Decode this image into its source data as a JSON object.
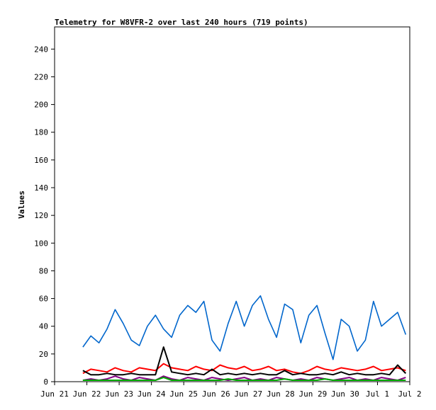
{
  "chart_data": {
    "type": "line",
    "title": "Telemetry for W8VFR-2 over last 240 hours (719 points)",
    "xlabel": "",
    "ylabel": "Values",
    "ylim": [
      0,
      256
    ],
    "yticks": [
      0,
      20,
      40,
      60,
      80,
      100,
      120,
      140,
      160,
      180,
      200,
      220,
      240
    ],
    "xlim": [
      "2025-06-21",
      "2025-07-02"
    ],
    "xticks": [
      "2025-06-21",
      "2025-06-22",
      "2025-06-23",
      "2025-06-24",
      "2025-06-25",
      "2025-06-26",
      "2025-06-27",
      "2025-06-28",
      "2025-06-29",
      "2025-06-30",
      "2025-07-01",
      "2025-07-02"
    ],
    "xtick_labels": [
      "Jun 21",
      "Jun 22",
      "Jun 23",
      "Jun 24",
      "Jun 25",
      "Jun 26",
      "Jun 27",
      "Jun 28",
      "Jun 29",
      "Jun 30",
      "Jul 1",
      "Jul 2"
    ],
    "x": [
      "06-21 21:00",
      "06-22 03:00",
      "06-22 09:00",
      "06-22 15:00",
      "06-22 21:00",
      "06-23 03:00",
      "06-23 09:00",
      "06-23 15:00",
      "06-23 21:00",
      "06-24 03:00",
      "06-24 09:00",
      "06-24 15:00",
      "06-24 21:00",
      "06-25 03:00",
      "06-25 09:00",
      "06-25 15:00",
      "06-25 21:00",
      "06-26 03:00",
      "06-26 09:00",
      "06-26 15:00",
      "06-26 21:00",
      "06-27 03:00",
      "06-27 09:00",
      "06-27 15:00",
      "06-27 21:00",
      "06-28 03:00",
      "06-28 09:00",
      "06-28 15:00",
      "06-28 21:00",
      "06-29 03:00",
      "06-29 09:00",
      "06-29 15:00",
      "06-29 21:00",
      "06-30 03:00",
      "06-30 09:00",
      "06-30 15:00",
      "06-30 21:00",
      "07-01 03:00",
      "07-01 09:00",
      "07-01 15:00",
      "07-01 21:00"
    ],
    "grid": false,
    "legend": "none",
    "series": [
      {
        "color": "#0066cc",
        "values": [
          25,
          33,
          28,
          38,
          52,
          42,
          30,
          26,
          40,
          48,
          38,
          32,
          48,
          55,
          50,
          58,
          30,
          22,
          42,
          58,
          40,
          55,
          62,
          45,
          32,
          56,
          52,
          28,
          48,
          55,
          35,
          16,
          45,
          40,
          22,
          30,
          58,
          40,
          45,
          50,
          34
        ]
      },
      {
        "color": "#ff0000",
        "values": [
          6,
          9,
          8,
          7,
          10,
          8,
          7,
          10,
          9,
          8,
          13,
          10,
          9,
          8,
          11,
          9,
          8,
          12,
          10,
          9,
          11,
          8,
          9,
          11,
          8,
          9,
          7,
          6,
          8,
          11,
          9,
          8,
          10,
          9,
          8,
          9,
          11,
          8,
          9,
          10,
          8
        ]
      },
      {
        "color": "#000000",
        "values": [
          8,
          5,
          5,
          6,
          5,
          5,
          6,
          5,
          5,
          5,
          25,
          7,
          6,
          5,
          6,
          5,
          9,
          5,
          6,
          5,
          6,
          5,
          6,
          5,
          5,
          8,
          5,
          6,
          5,
          5,
          6,
          5,
          7,
          5,
          6,
          5,
          5,
          6,
          5,
          12,
          6
        ]
      },
      {
        "color": "#800080",
        "values": [
          1,
          2,
          1,
          2,
          4,
          2,
          1,
          3,
          2,
          1,
          4,
          2,
          1,
          3,
          2,
          1,
          3,
          2,
          1,
          2,
          3,
          1,
          2,
          1,
          3,
          2,
          1,
          2,
          1,
          3,
          2,
          1,
          2,
          3,
          1,
          2,
          1,
          3,
          2,
          1,
          3
        ]
      },
      {
        "color": "#00aa00",
        "values": [
          1,
          1,
          1,
          1,
          1,
          1,
          1,
          1,
          1,
          1,
          3,
          1,
          1,
          1,
          1,
          1,
          1,
          1,
          2,
          1,
          1,
          1,
          1,
          1,
          1,
          2,
          1,
          1,
          1,
          1,
          2,
          1,
          1,
          1,
          1,
          1,
          1,
          1,
          1,
          1,
          1
        ]
      }
    ]
  }
}
